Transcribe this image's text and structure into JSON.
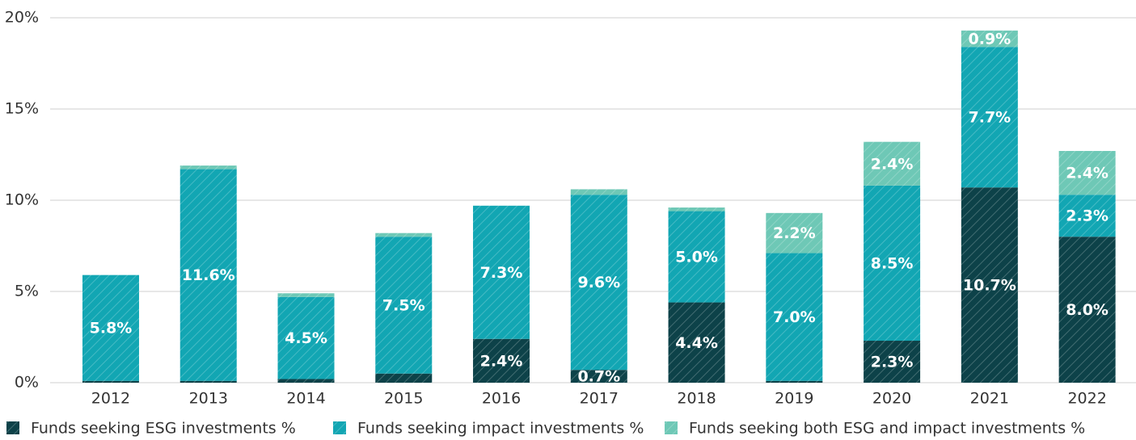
{
  "chart_data": {
    "type": "stacked_bar",
    "categories": [
      "2012",
      "2013",
      "2014",
      "2015",
      "2016",
      "2017",
      "2018",
      "2019",
      "2020",
      "2021",
      "2022"
    ],
    "series": [
      {
        "name": "Funds seeking ESG investments %",
        "color": "#0d4249",
        "values": [
          0.1,
          0.1,
          0.2,
          0.5,
          2.4,
          0.7,
          4.4,
          0.1,
          2.3,
          10.7,
          8.0
        ],
        "value_labels": [
          null,
          null,
          null,
          null,
          "2.4%",
          "0.7%",
          "4.4%",
          null,
          "2.3%",
          "10.7%",
          "8.0%"
        ]
      },
      {
        "name": "Funds seeking impact investments %",
        "color": "#12a6b3",
        "values": [
          5.8,
          11.6,
          4.5,
          7.5,
          7.3,
          9.6,
          5.0,
          7.0,
          8.5,
          7.7,
          2.3
        ],
        "value_labels": [
          "5.8%",
          "11.6%",
          "4.5%",
          "7.5%",
          "7.3%",
          "9.6%",
          "5.0%",
          "7.0%",
          "8.5%",
          "7.7%",
          "2.3%"
        ]
      },
      {
        "name": "Funds seeking both ESG and impact investments %",
        "color": "#6ec8b6",
        "values": [
          0,
          0.2,
          0.2,
          0.2,
          0,
          0.3,
          0.2,
          2.2,
          2.4,
          0.9,
          2.4
        ],
        "value_labels": [
          null,
          null,
          null,
          null,
          null,
          null,
          null,
          "2.2%",
          "2.4%",
          "0.9%",
          "2.4%"
        ]
      }
    ],
    "ylim": [
      0,
      20
    ],
    "yticks": [
      {
        "value": 0,
        "label": "0%"
      },
      {
        "value": 5,
        "label": "5%"
      },
      {
        "value": 10,
        "label": "10%"
      },
      {
        "value": 15,
        "label": "15%"
      },
      {
        "value": 20,
        "label": "20%"
      }
    ],
    "grid": true,
    "legend": "bottom"
  }
}
